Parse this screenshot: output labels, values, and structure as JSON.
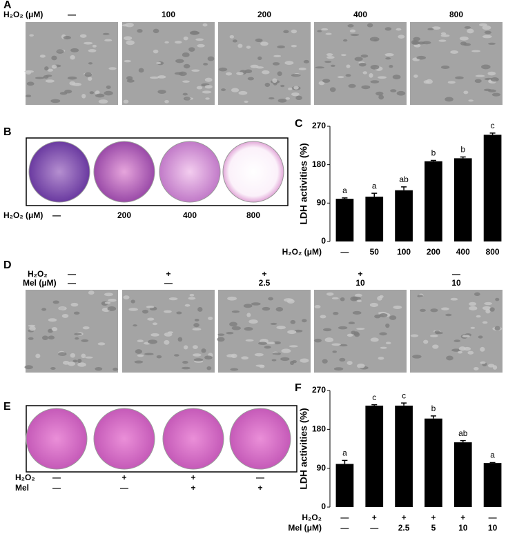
{
  "panels": {
    "A": {
      "label": "A",
      "row_label": "H₂O₂ (μM)",
      "conditions": [
        "—",
        "100",
        "200",
        "400",
        "800"
      ]
    },
    "B": {
      "label": "B",
      "row_label": "H₂O₂ (μM)",
      "conditions": [
        "—",
        "200",
        "400",
        "800"
      ]
    },
    "D": {
      "label": "D",
      "rows": [
        {
          "label": "H₂O₂",
          "values": [
            "—",
            "+",
            "+",
            "+",
            "—"
          ]
        },
        {
          "label": "Mel (μM)",
          "values": [
            "—",
            "—",
            "2.5",
            "10",
            "10"
          ]
        }
      ]
    },
    "E": {
      "label": "E",
      "rows": [
        {
          "label": "H₂O₂",
          "values": [
            "—",
            "+",
            "+",
            "—"
          ]
        },
        {
          "label": "Mel",
          "values": [
            "—",
            "—",
            "+",
            "+"
          ]
        }
      ]
    }
  },
  "chart_data": [
    {
      "type": "bar",
      "panel_label": "C",
      "ylabel": "LDH activities (%)",
      "category_rows": [
        {
          "label": "H₂O₂ (μM)",
          "values": [
            "—",
            "50",
            "100",
            "200",
            "400",
            "800"
          ]
        }
      ],
      "values": [
        100,
        105,
        120,
        188,
        195,
        250
      ],
      "errors": [
        2,
        8,
        8,
        2,
        3,
        4
      ],
      "annotations": [
        "a",
        "a",
        "ab",
        "b",
        "b",
        "c"
      ],
      "color": "#000000",
      "ylim": [
        0,
        270
      ],
      "yticks": [
        0,
        90,
        180,
        270
      ]
    },
    {
      "type": "bar",
      "panel_label": "F",
      "ylabel": "LDH activities (%)",
      "category_rows": [
        {
          "label": "H₂O₂",
          "values": [
            "—",
            "+",
            "+",
            "+",
            "+",
            "—"
          ]
        },
        {
          "label": "Mel (μM)",
          "values": [
            "—",
            "—",
            "2.5",
            "5",
            "10",
            "10"
          ]
        }
      ],
      "values": [
        100,
        235,
        235,
        205,
        150,
        102
      ],
      "errors": [
        8,
        2,
        6,
        6,
        4,
        1
      ],
      "annotations": [
        "a",
        "c",
        "c",
        "b",
        "ab",
        "a"
      ],
      "color": "#000000",
      "ylim": [
        0,
        270
      ],
      "yticks": [
        0,
        90,
        180,
        270
      ]
    }
  ]
}
